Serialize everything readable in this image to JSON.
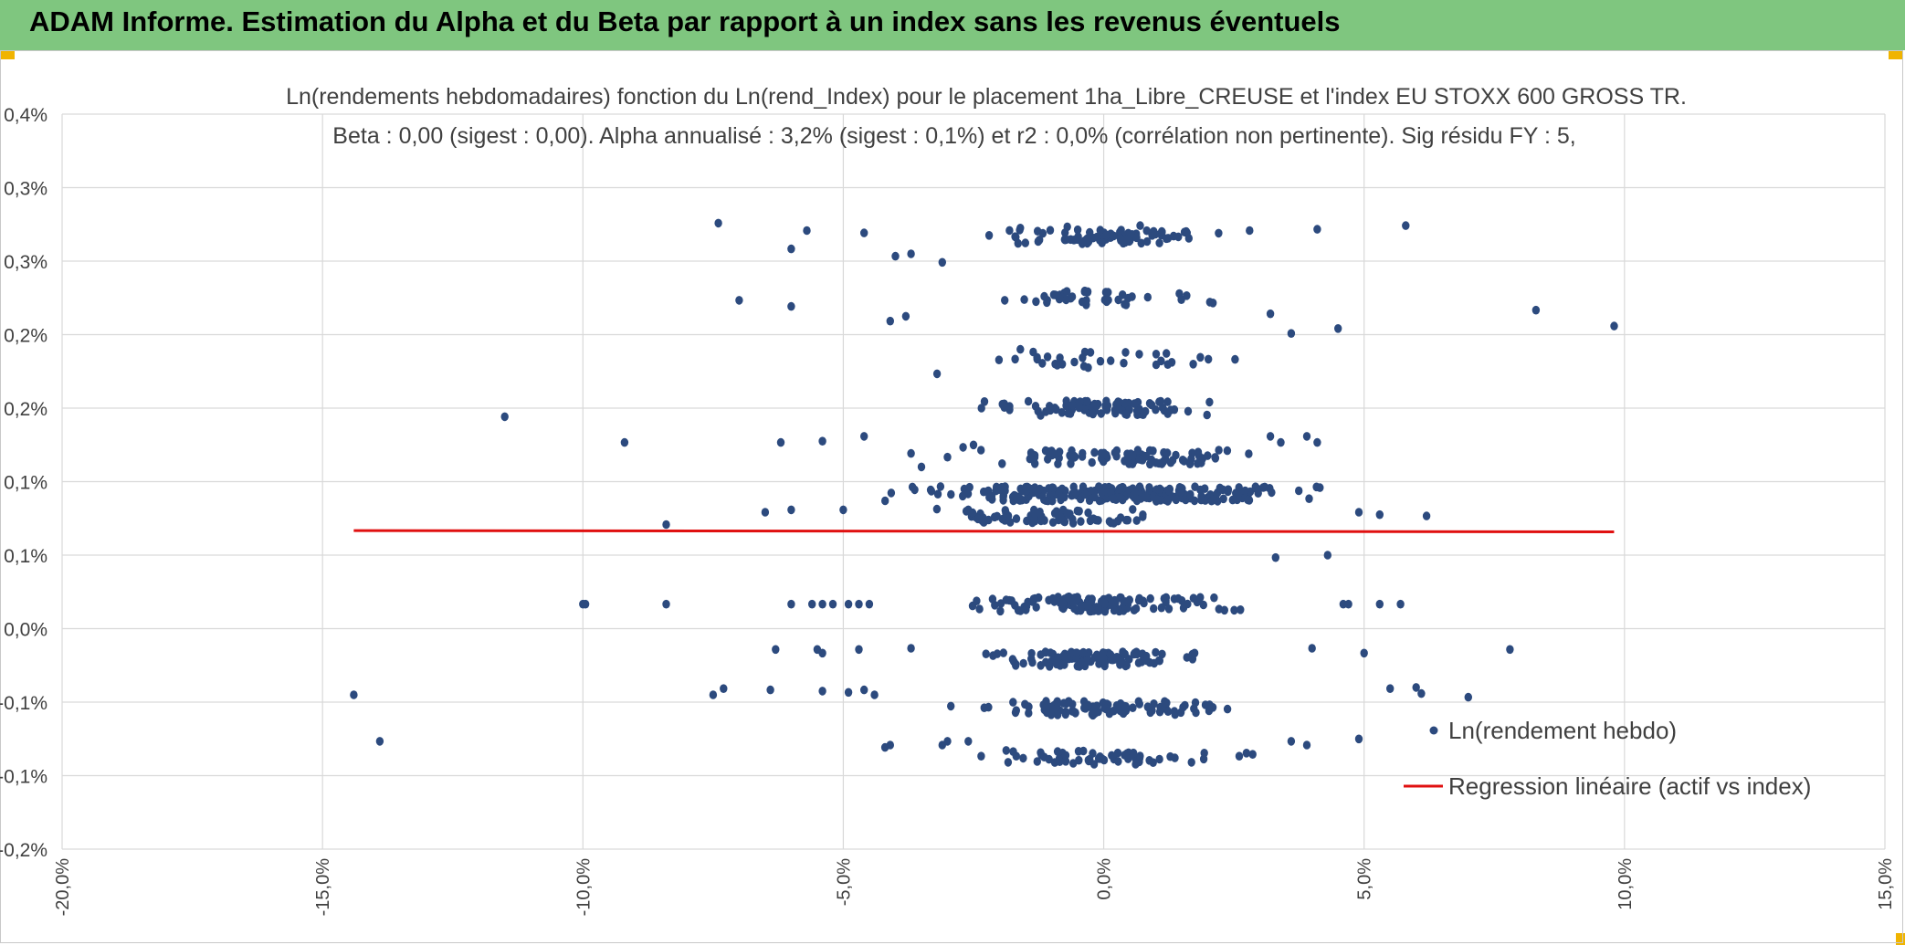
{
  "header": {
    "title": "ADAM Informe. Estimation du Alpha et du Beta par rapport à un index sans les revenus éventuels"
  },
  "colors": {
    "banner": "#7fc67f",
    "accent": "#f0b400",
    "points": "#2c4a7e",
    "regression": "#e01010",
    "grid": "#d9d9d9"
  },
  "chart_data": {
    "type": "scatter",
    "title": "Ln(rendements hebdomadaires) fonction du Ln(rend_Index) pour le placement 1ha_Libre_CREUSE et l'index EU STOXX 600 GROSS TR.",
    "subtitle": "Beta : 0,00 (sigest : 0,00). Alpha annualisé : 3,2% (sigest : 0,1%) et r2 : 0,0% (corrélation non pertinente). Sig résidu FY : 5,",
    "xlim": [
      -20,
      15
    ],
    "ylim": [
      -0.2,
      0.4
    ],
    "x_ticks": [
      "-20,0%",
      "-15,0%",
      "-10,0%",
      "-5,0%",
      "0,0%",
      "5,0%",
      "10,0%",
      "15,0%"
    ],
    "y_ticks": [
      "-0,2%",
      "-0,1%",
      "-0,1%",
      "0,0%",
      "0,1%",
      "0,1%",
      "0,2%",
      "0,2%",
      "0,3%",
      "0,3%",
      "0,4%"
    ],
    "grid": true,
    "legend_position": "right",
    "series": [
      {
        "name": "Ln(rendement hebdo)",
        "kind": "scatter",
        "clusters": [
          {
            "y": 0.0,
            "x_min": -3,
            "x_max": 2.8,
            "n": 130
          },
          {
            "y": 0.072,
            "x_min": -3.8,
            "x_max": 1.8,
            "n": 70
          },
          {
            "y": -0.045,
            "x_min": -2.5,
            "x_max": 2.0,
            "n": 110
          },
          {
            "y": 0.09,
            "x_min": -4.2,
            "x_max": 4.4,
            "n": 260
          },
          {
            "y": -0.085,
            "x_min": -3.0,
            "x_max": 3.0,
            "n": 95
          },
          {
            "y": 0.12,
            "x_min": -2.6,
            "x_max": 2.8,
            "n": 90
          },
          {
            "y": -0.125,
            "x_min": -2.6,
            "x_max": 3.0,
            "n": 60
          },
          {
            "y": 0.16,
            "x_min": -2.4,
            "x_max": 2.4,
            "n": 90
          },
          {
            "y": 0.2,
            "x_min": -2.6,
            "x_max": 2.6,
            "n": 30
          },
          {
            "y": 0.25,
            "x_min": -2.4,
            "x_max": 2.4,
            "n": 40
          },
          {
            "y": 0.3,
            "x_min": -2.2,
            "x_max": 2.3,
            "n": 80
          }
        ],
        "points": [
          [
            -14.4,
            -0.074
          ],
          [
            -13.9,
            -0.112
          ],
          [
            -11.5,
            0.153
          ],
          [
            -9.2,
            0.132
          ],
          [
            -8.4,
            0.065
          ],
          [
            -10.0,
            0.0
          ],
          [
            -9.95,
            0.0
          ],
          [
            -8.4,
            0.0
          ],
          [
            -6.0,
            0.0
          ],
          [
            -5.6,
            0.0
          ],
          [
            -5.4,
            0.0
          ],
          [
            -5.2,
            0.0
          ],
          [
            -4.9,
            0.0
          ],
          [
            -4.7,
            0.0
          ],
          [
            -4.5,
            0.0
          ],
          [
            4.6,
            0.0
          ],
          [
            4.7,
            0.0
          ],
          [
            5.3,
            0.0
          ],
          [
            5.7,
            0.0
          ],
          [
            -7.4,
            0.311
          ],
          [
            -5.7,
            0.305
          ],
          [
            -6.0,
            0.29
          ],
          [
            -4.6,
            0.303
          ],
          [
            -7.0,
            0.248
          ],
          [
            -6.0,
            0.243
          ],
          [
            -4.1,
            0.231
          ],
          [
            -3.8,
            0.235
          ],
          [
            -4.0,
            0.284
          ],
          [
            -3.7,
            0.286
          ],
          [
            -3.1,
            0.279
          ],
          [
            -3.2,
            0.188
          ],
          [
            -6.2,
            0.132
          ],
          [
            -5.4,
            0.133
          ],
          [
            -4.6,
            0.137
          ],
          [
            -3.7,
            0.123
          ],
          [
            -3.5,
            0.112
          ],
          [
            -6.5,
            0.075
          ],
          [
            -6.0,
            0.077
          ],
          [
            -5.0,
            0.077
          ],
          [
            -3.0,
            0.12
          ],
          [
            -2.7,
            0.128
          ],
          [
            -2.5,
            0.13
          ],
          [
            -7.3,
            -0.069
          ],
          [
            -7.5,
            -0.074
          ],
          [
            -6.4,
            -0.07
          ],
          [
            -5.4,
            -0.071
          ],
          [
            -4.9,
            -0.072
          ],
          [
            -4.6,
            -0.07
          ],
          [
            -4.4,
            -0.074
          ],
          [
            -6.3,
            -0.037
          ],
          [
            -5.5,
            -0.037
          ],
          [
            -5.4,
            -0.04
          ],
          [
            -4.7,
            -0.037
          ],
          [
            -3.7,
            -0.036
          ],
          [
            -4.2,
            -0.117
          ],
          [
            -4.1,
            -0.115
          ],
          [
            -3.1,
            -0.115
          ],
          [
            -3.0,
            -0.112
          ],
          [
            -2.6,
            -0.112
          ],
          [
            2.8,
            0.305
          ],
          [
            4.1,
            0.306
          ],
          [
            5.8,
            0.309
          ],
          [
            3.2,
            0.237
          ],
          [
            3.6,
            0.221
          ],
          [
            4.5,
            0.225
          ],
          [
            8.3,
            0.24
          ],
          [
            9.8,
            0.227
          ],
          [
            3.2,
            0.137
          ],
          [
            3.4,
            0.132
          ],
          [
            3.9,
            0.137
          ],
          [
            4.1,
            0.132
          ],
          [
            3.3,
            0.038
          ],
          [
            4.3,
            0.04
          ],
          [
            5.0,
            -0.04
          ],
          [
            7.8,
            -0.037
          ],
          [
            5.5,
            -0.069
          ],
          [
            6.0,
            -0.068
          ],
          [
            6.1,
            -0.073
          ],
          [
            7.0,
            -0.076
          ],
          [
            4.9,
            -0.11
          ],
          [
            3.9,
            -0.115
          ],
          [
            3.6,
            -0.112
          ],
          [
            6.2,
            0.072
          ],
          [
            4.9,
            0.075
          ],
          [
            5.3,
            0.073
          ],
          [
            4.0,
            -0.036
          ],
          [
            -1.6,
            0.307
          ],
          [
            -1.7,
            0.3
          ],
          [
            -2.2,
            0.301
          ],
          [
            0.7,
            0.309
          ],
          [
            1.6,
            0.303
          ],
          [
            -0.7,
            0.308
          ],
          [
            -1.9,
            0.248
          ],
          [
            -1.3,
            0.247
          ],
          [
            -1.6,
            0.208
          ],
          [
            -1.7,
            0.2
          ],
          [
            -0.3,
            0.193
          ]
        ]
      },
      {
        "name": "Regression linéaire (actif vs index)",
        "kind": "line",
        "x": [
          -14.4,
          9.8
        ],
        "y": [
          0.06,
          0.059
        ]
      }
    ]
  }
}
